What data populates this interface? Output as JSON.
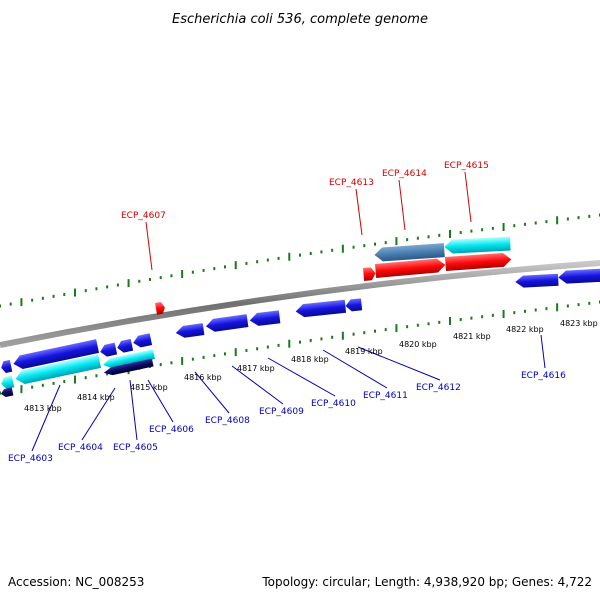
{
  "title": "Escherichia coli 536, complete genome",
  "footer": {
    "accession": "Accession: NC_008253",
    "topology": "Topology: circular; Length: 4,938,920 bp; Genes: 4,722"
  },
  "colors": {
    "backbone": "#8a8a8a",
    "tick": "#1a7a1a",
    "top_label": "#d40000",
    "bottom_label": "#0000b4",
    "gene_blue": "#1414e0",
    "gene_red": "#ff0a0a",
    "gene_cyan": "#00e8f0",
    "gene_steel": "#4a7fb0",
    "gene_navy": "#0a0a60"
  },
  "scale_labels": [
    "4813 kbp",
    "4814 kbp",
    "4815 kbp",
    "4816 kbp",
    "4817 kbp",
    "4818 kbp",
    "4819 kbp",
    "4820 kbp",
    "4821 kbp",
    "4822 kbp",
    "4823 kbp"
  ],
  "top_genes": [
    "ECP_4607",
    "ECP_4613",
    "ECP_4614",
    "ECP_4615"
  ],
  "bottom_genes": [
    "ECP_4603",
    "ECP_4604",
    "ECP_4605",
    "ECP_4606",
    "ECP_4608",
    "ECP_4609",
    "ECP_4610",
    "ECP_4611",
    "ECP_4612",
    "ECP_4616"
  ]
}
